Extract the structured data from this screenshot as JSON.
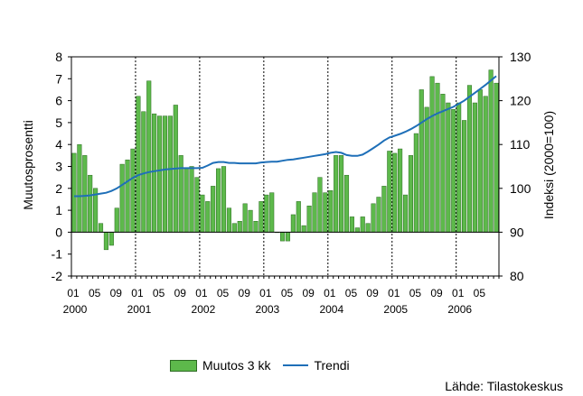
{
  "chart_data": {
    "type": "bar",
    "y_left": {
      "label": "Muutosprosentti",
      "ylim": [
        -2,
        8
      ],
      "ticks": [
        -2,
        -1,
        0,
        1,
        2,
        3,
        4,
        5,
        6,
        7,
        8
      ]
    },
    "y_right": {
      "label": "Indeksi (2000=100)",
      "ylim": [
        80,
        130
      ],
      "ticks": [
        80,
        90,
        100,
        110,
        120,
        130
      ]
    },
    "x_month_labels": [
      "01",
      "05",
      "09",
      "01",
      "05",
      "09",
      "01",
      "05",
      "09",
      "01",
      "05",
      "09",
      "01",
      "05",
      "09",
      "01",
      "05",
      "09",
      "01",
      "05"
    ],
    "x_year_labels": [
      "2000",
      "2001",
      "2002",
      "2003",
      "2004",
      "2005",
      "2006"
    ],
    "start": "2000-01",
    "series": [
      {
        "name": "Muutos 3 kk",
        "kind": "bar",
        "color": "#5db94b",
        "values": [
          3.6,
          4.0,
          3.5,
          2.6,
          2.0,
          0.4,
          -0.8,
          -0.6,
          1.1,
          3.1,
          3.3,
          3.8,
          6.2,
          5.5,
          6.9,
          5.4,
          5.3,
          5.3,
          5.3,
          5.8,
          3.5,
          2.9,
          3.0,
          2.5,
          1.7,
          1.4,
          2.1,
          2.9,
          3.0,
          1.1,
          0.4,
          0.5,
          1.3,
          1.0,
          0.5,
          1.4,
          1.7,
          1.8,
          0.0,
          -0.4,
          -0.4,
          0.8,
          1.4,
          0.3,
          1.2,
          1.8,
          2.5,
          1.8,
          1.9,
          3.5,
          3.5,
          2.6,
          0.7,
          0.2,
          0.7,
          0.4,
          1.3,
          1.6,
          2.1,
          3.7,
          3.6,
          3.8,
          1.7,
          3.5,
          4.5,
          6.5,
          5.7,
          7.1,
          6.8,
          6.3,
          5.9,
          5.6,
          5.9,
          5.1,
          6.7,
          5.9,
          6.5,
          6.2,
          7.4,
          6.8
        ]
      },
      {
        "name": "Trendi",
        "kind": "line",
        "axis": "right",
        "color": "#1e6fb8",
        "values": [
          98.2,
          98.2,
          98.3,
          98.4,
          98.6,
          98.8,
          99.0,
          99.4,
          100.0,
          100.8,
          101.6,
          102.4,
          103.0,
          103.4,
          103.7,
          103.9,
          104.1,
          104.3,
          104.4,
          104.5,
          104.6,
          104.6,
          104.6,
          104.6,
          104.7,
          105.2,
          105.8,
          106.0,
          106.0,
          105.8,
          105.8,
          105.7,
          105.7,
          105.7,
          105.7,
          105.9,
          106.0,
          106.1,
          106.1,
          106.3,
          106.5,
          106.6,
          106.8,
          107.0,
          107.2,
          107.4,
          107.6,
          107.8,
          108.1,
          108.3,
          108.1,
          107.6,
          107.4,
          107.4,
          107.7,
          108.4,
          109.2,
          110.0,
          110.9,
          111.6,
          112.0,
          112.4,
          112.9,
          113.5,
          114.2,
          115.0,
          115.8,
          116.5,
          117.1,
          117.6,
          118.1,
          118.6,
          119.3,
          120.0,
          120.9,
          121.8,
          122.7,
          123.6,
          124.6,
          125.6
        ]
      }
    ],
    "grid": {
      "vertical_year_lines": true,
      "dotted": true
    },
    "legend_position": "bottom",
    "source": "Lähde: Tilastokeskus"
  },
  "colors": {
    "bar_fill": "#5db94b",
    "bar_edge": "#2c6b22",
    "trend": "#1e6fb8"
  }
}
